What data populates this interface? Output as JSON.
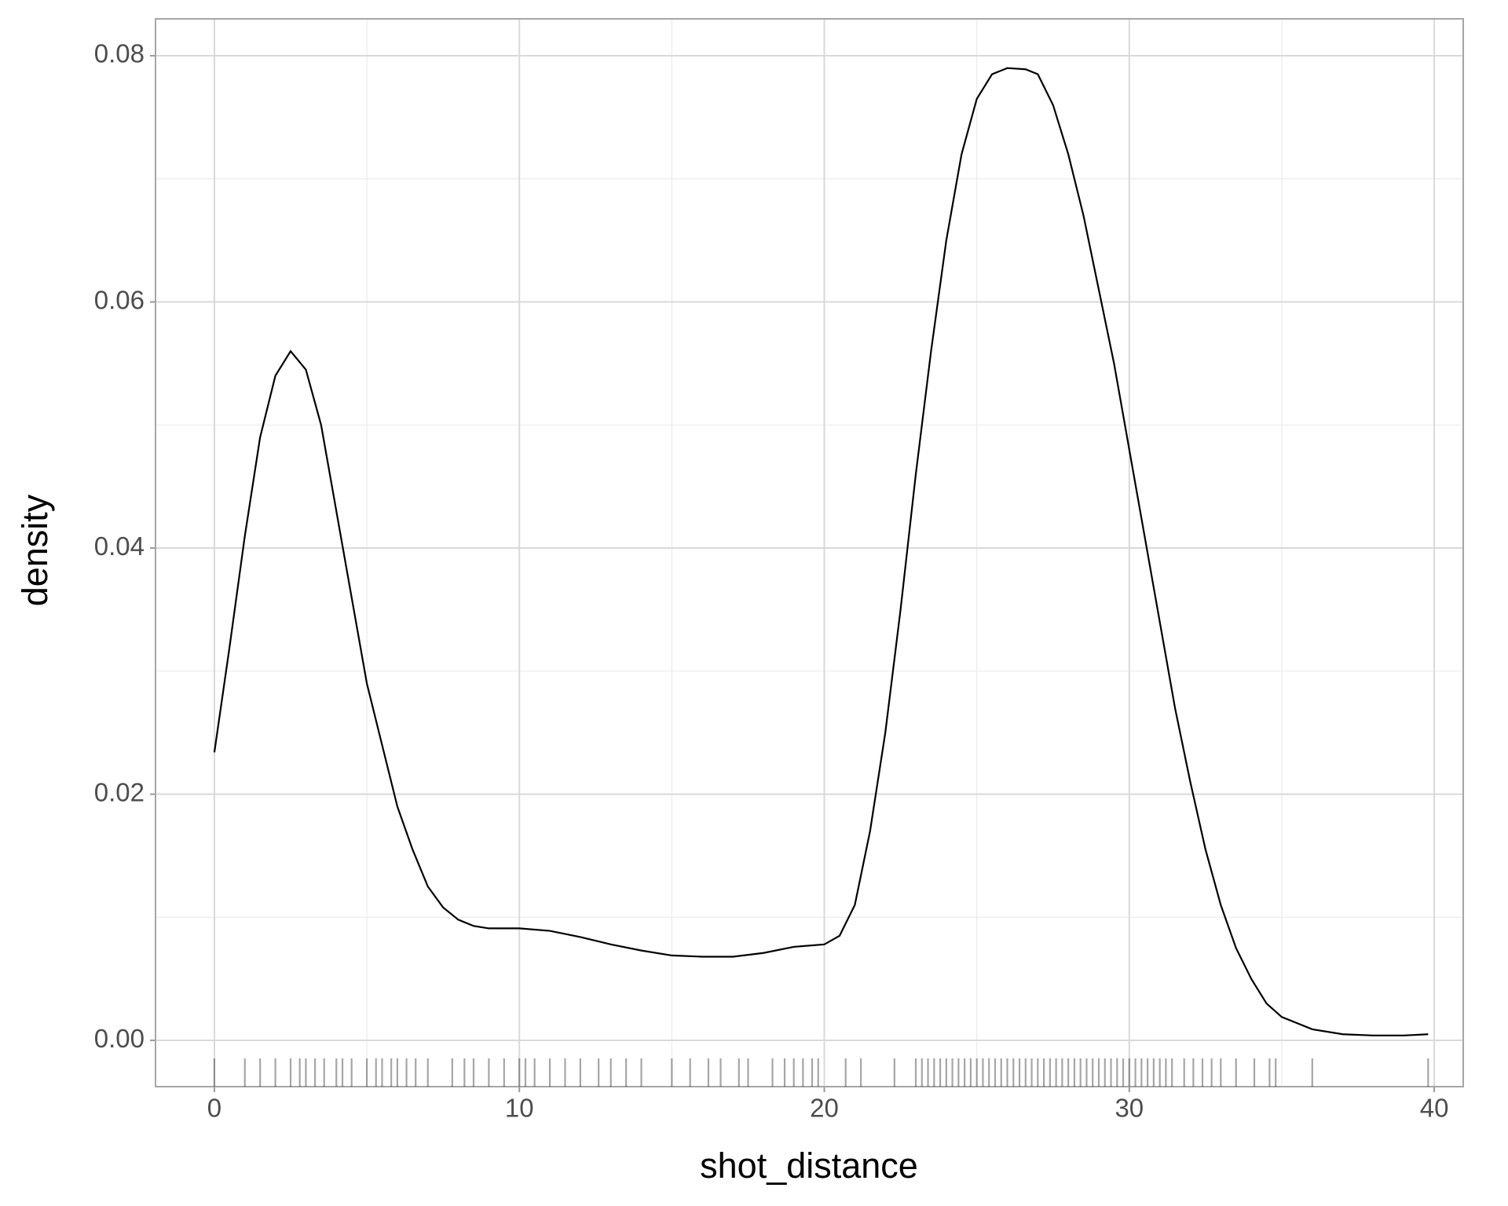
{
  "chart_data": {
    "type": "density",
    "x_label": "shot_distance",
    "y_label": "density",
    "x": [
      0,
      0.5,
      1,
      1.5,
      2,
      2.5,
      3,
      3.5,
      4,
      4.5,
      5,
      5.5,
      6,
      6.5,
      7,
      7.5,
      8,
      8.5,
      9,
      10,
      11,
      12,
      13,
      14,
      15,
      16,
      17,
      18,
      19,
      20,
      20.5,
      21,
      21.5,
      22,
      22.5,
      23,
      23.5,
      24,
      24.5,
      25,
      25.5,
      26,
      26.6,
      27,
      27.5,
      28,
      28.5,
      29,
      29.5,
      30,
      30.5,
      31,
      31.5,
      32,
      32.5,
      33,
      33.5,
      34,
      34.5,
      35,
      36,
      37,
      38,
      39,
      39.8
    ],
    "values": [
      0.0234,
      0.032,
      0.041,
      0.049,
      0.054,
      0.056,
      0.0545,
      0.05,
      0.043,
      0.036,
      0.029,
      0.024,
      0.019,
      0.0155,
      0.0125,
      0.0108,
      0.0098,
      0.0093,
      0.0091,
      0.0091,
      0.0089,
      0.0084,
      0.0078,
      0.0073,
      0.0069,
      0.0068,
      0.0068,
      0.0071,
      0.0076,
      0.0078,
      0.0085,
      0.011,
      0.017,
      0.025,
      0.035,
      0.046,
      0.056,
      0.065,
      0.072,
      0.0765,
      0.0785,
      0.079,
      0.0789,
      0.0785,
      0.076,
      0.072,
      0.067,
      0.061,
      0.055,
      0.048,
      0.041,
      0.034,
      0.027,
      0.021,
      0.0155,
      0.011,
      0.0075,
      0.005,
      0.003,
      0.0019,
      0.0009,
      0.0005,
      0.0004,
      0.0004,
      0.0005
    ],
    "color": "#000000",
    "rug": [
      0,
      1,
      1.5,
      2,
      2.5,
      2.8,
      3,
      3.3,
      3.6,
      4,
      4.2,
      4.5,
      5,
      5.3,
      5.5,
      5.8,
      6,
      6.3,
      6.6,
      7,
      7.8,
      8.2,
      8.5,
      9,
      9.5,
      10,
      10.2,
      10.5,
      11,
      11.5,
      12,
      12.6,
      13,
      13.5,
      14,
      15,
      15.6,
      16.2,
      16.6,
      17.2,
      17.5,
      18.3,
      18.7,
      19,
      19.3,
      19.6,
      19.8,
      20.7,
      21.2,
      22.3,
      23,
      23.2,
      23.4,
      23.6,
      23.8,
      24,
      24.2,
      24.4,
      24.6,
      24.8,
      25,
      25.2,
      25.4,
      25.6,
      25.8,
      26,
      26.2,
      26.4,
      26.6,
      26.8,
      27,
      27.2,
      27.4,
      27.6,
      27.8,
      28,
      28.2,
      28.4,
      28.6,
      28.8,
      29,
      29.2,
      29.4,
      29.6,
      29.8,
      30,
      30.2,
      30.4,
      30.6,
      30.8,
      31,
      31.2,
      31.4,
      31.8,
      32.1,
      32.4,
      32.7,
      33,
      33.5,
      34.1,
      34.6,
      34.8,
      36,
      39.8
    ],
    "rug_color": "#000000",
    "rug_opacity": 0.35,
    "xlim": [
      -1.93,
      40.95
    ],
    "xticks": [
      0,
      10,
      20,
      30,
      40
    ],
    "ylim": [
      -0.00376,
      0.083
    ],
    "yticks": [
      {
        "value": 0,
        "label": "0.00"
      },
      {
        "value": 0.02,
        "label": "0.02"
      },
      {
        "value": 0.04,
        "label": "0.04"
      },
      {
        "value": 0.06,
        "label": "0.06"
      },
      {
        "value": 0.08,
        "label": "0.08"
      }
    ],
    "x_minor_ticks": [
      5,
      15,
      25,
      35
    ],
    "y_minor_ticks": [
      0.01,
      0.03,
      0.05,
      0.07
    ],
    "grid": true
  }
}
